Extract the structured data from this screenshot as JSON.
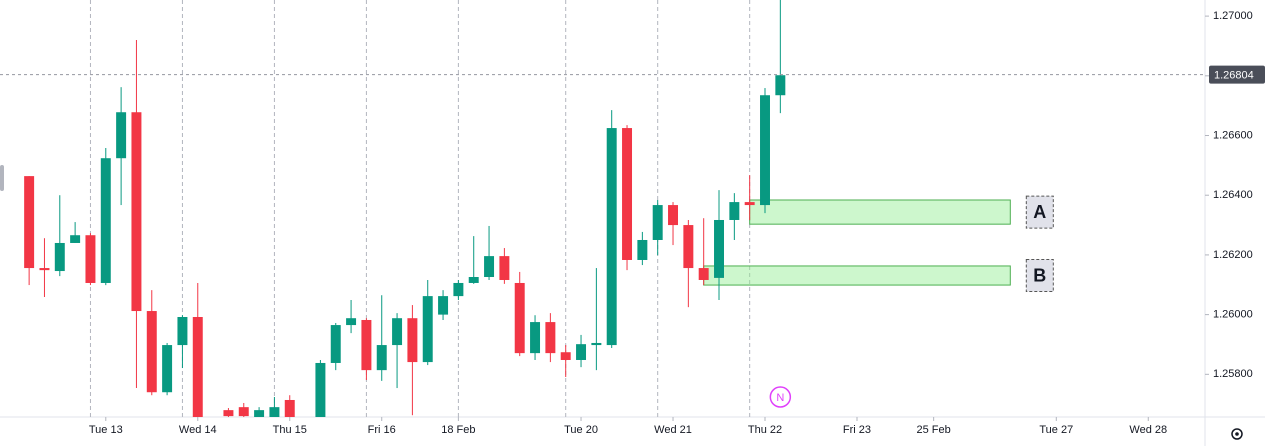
{
  "chart_data": {
    "type": "candlestick",
    "x": [
      0,
      1,
      2,
      3,
      4,
      5,
      6,
      7,
      8,
      9,
      10,
      11,
      13,
      14,
      15,
      16,
      17,
      19,
      20,
      21,
      22,
      23,
      24,
      25,
      26,
      27,
      28,
      29,
      30,
      31,
      32,
      33,
      34,
      35,
      36,
      37,
      38,
      39,
      40,
      41,
      42,
      43,
      44,
      45,
      46,
      47,
      48,
      49
    ],
    "open": [
      1.26464,
      1.26156,
      1.26146,
      1.2624,
      1.26266,
      1.26106,
      1.26524,
      1.26678,
      1.26012,
      1.2574,
      1.25898,
      1.25992,
      1.2568,
      1.2569,
      1.2565,
      1.2565,
      1.25714,
      1.2563,
      1.25838,
      1.25965,
      1.25982,
      1.25814,
      1.25898,
      1.25988,
      1.25841,
      1.26,
      1.26062,
      1.26106,
      1.26126,
      1.26196,
      1.26106,
      1.25871,
      1.25975,
      1.25874,
      1.25848,
      1.25898,
      1.25898,
      1.26625,
      1.26183,
      1.2625,
      1.26367,
      1.263,
      1.26156,
      1.26123,
      1.26317,
      1.26377,
      1.26367,
      1.26735
    ],
    "high": [
      1.26464,
      1.26256,
      1.264,
      1.2631,
      1.26273,
      1.26558,
      1.26762,
      1.2692,
      1.26082,
      1.25905,
      1.25998,
      1.26106,
      1.25687,
      1.25704,
      1.2569,
      1.25724,
      1.2573,
      1.25848,
      1.25972,
      1.26049,
      1.25988,
      1.26065,
      1.26005,
      1.26032,
      1.26116,
      1.26082,
      1.26116,
      1.26263,
      1.26297,
      1.26223,
      1.26143,
      1.25998,
      1.26005,
      1.25898,
      1.25932,
      1.26156,
      1.26685,
      1.26635,
      1.26277,
      1.26384,
      1.26377,
      1.26317,
      1.26323,
      1.26417,
      1.26407,
      1.26467,
      1.26759,
      1.2706
    ],
    "low": [
      1.26099,
      1.26059,
      1.26129,
      1.2624,
      1.26099,
      1.26099,
      1.26367,
      1.25754,
      1.2573,
      1.2573,
      1.25821,
      1.2562,
      1.2562,
      1.2562,
      1.2564,
      1.2564,
      1.256,
      1.2561,
      1.25814,
      1.25938,
      1.25781,
      1.25778,
      1.25754,
      1.25663,
      1.25831,
      1.25982,
      1.26049,
      1.26103,
      1.26116,
      1.26103,
      1.25861,
      1.25848,
      1.25841,
      1.25791,
      1.25824,
      1.25814,
      1.25888,
      1.26149,
      1.26166,
      1.26199,
      1.26233,
      1.26025,
      1.26099,
      1.26049,
      1.2625,
      1.26317,
      1.2634,
      1.26675
    ],
    "close": [
      1.26156,
      1.26149,
      1.2624,
      1.26266,
      1.26106,
      1.26524,
      1.26678,
      1.26012,
      1.2574,
      1.25898,
      1.25992,
      1.2564,
      1.2566,
      1.2566,
      1.2568,
      1.2569,
      1.2562,
      1.25838,
      1.25965,
      1.25988,
      1.25814,
      1.25898,
      1.25988,
      1.25841,
      1.26062,
      1.26062,
      1.26106,
      1.26126,
      1.26196,
      1.26116,
      1.25871,
      1.25975,
      1.25871,
      1.25848,
      1.25901,
      1.25905,
      1.26625,
      1.26183,
      1.2625,
      1.26367,
      1.263,
      1.26156,
      1.26116,
      1.26317,
      1.26377,
      1.26367,
      1.26735,
      1.26802
    ],
    "up_color": "#089981",
    "down_color": "#f23645",
    "xlim": [
      -1.9,
      76.7
    ],
    "xticks": [
      {
        "value": 5,
        "label": "Tue 13"
      },
      {
        "value": 11,
        "label": "Wed 14"
      },
      {
        "value": 17,
        "label": "Thu 15"
      },
      {
        "value": 23,
        "label": "Fri 16"
      },
      {
        "value": 28,
        "label": "18 Feb"
      },
      {
        "value": 36,
        "label": "Tue 20"
      },
      {
        "value": 42,
        "label": "Wed 21"
      },
      {
        "value": 48,
        "label": "Thu 22"
      },
      {
        "value": 54,
        "label": "Fri 23"
      },
      {
        "value": 59,
        "label": "25 Feb"
      },
      {
        "value": 67,
        "label": "Tue 27"
      },
      {
        "value": 73,
        "label": "Wed 28"
      }
    ],
    "session_lines": [
      4,
      10,
      16,
      22,
      28,
      35,
      41,
      47
    ],
    "ylim": [
      1.25657,
      1.27054
    ],
    "yticks": [
      {
        "value": 1.258,
        "label": "1.25800"
      },
      {
        "value": 1.26,
        "label": "1.26000"
      },
      {
        "value": 1.262,
        "label": "1.26200"
      },
      {
        "value": 1.264,
        "label": "1.26400"
      },
      {
        "value": 1.266,
        "label": "1.26600"
      },
      {
        "value": 1.268,
        "label": "1.26800"
      },
      {
        "value": 1.27,
        "label": "1.27000"
      }
    ],
    "last_price": 1.26804,
    "zones": [
      {
        "label": "A",
        "x": [
          47,
          64
        ],
        "y": [
          1.26303,
          1.26384
        ]
      },
      {
        "label": "B",
        "x": [
          44,
          64
        ],
        "y": [
          1.26099,
          1.26163
        ]
      }
    ],
    "events": [
      {
        "label": "N",
        "x": 49
      }
    ]
  }
}
